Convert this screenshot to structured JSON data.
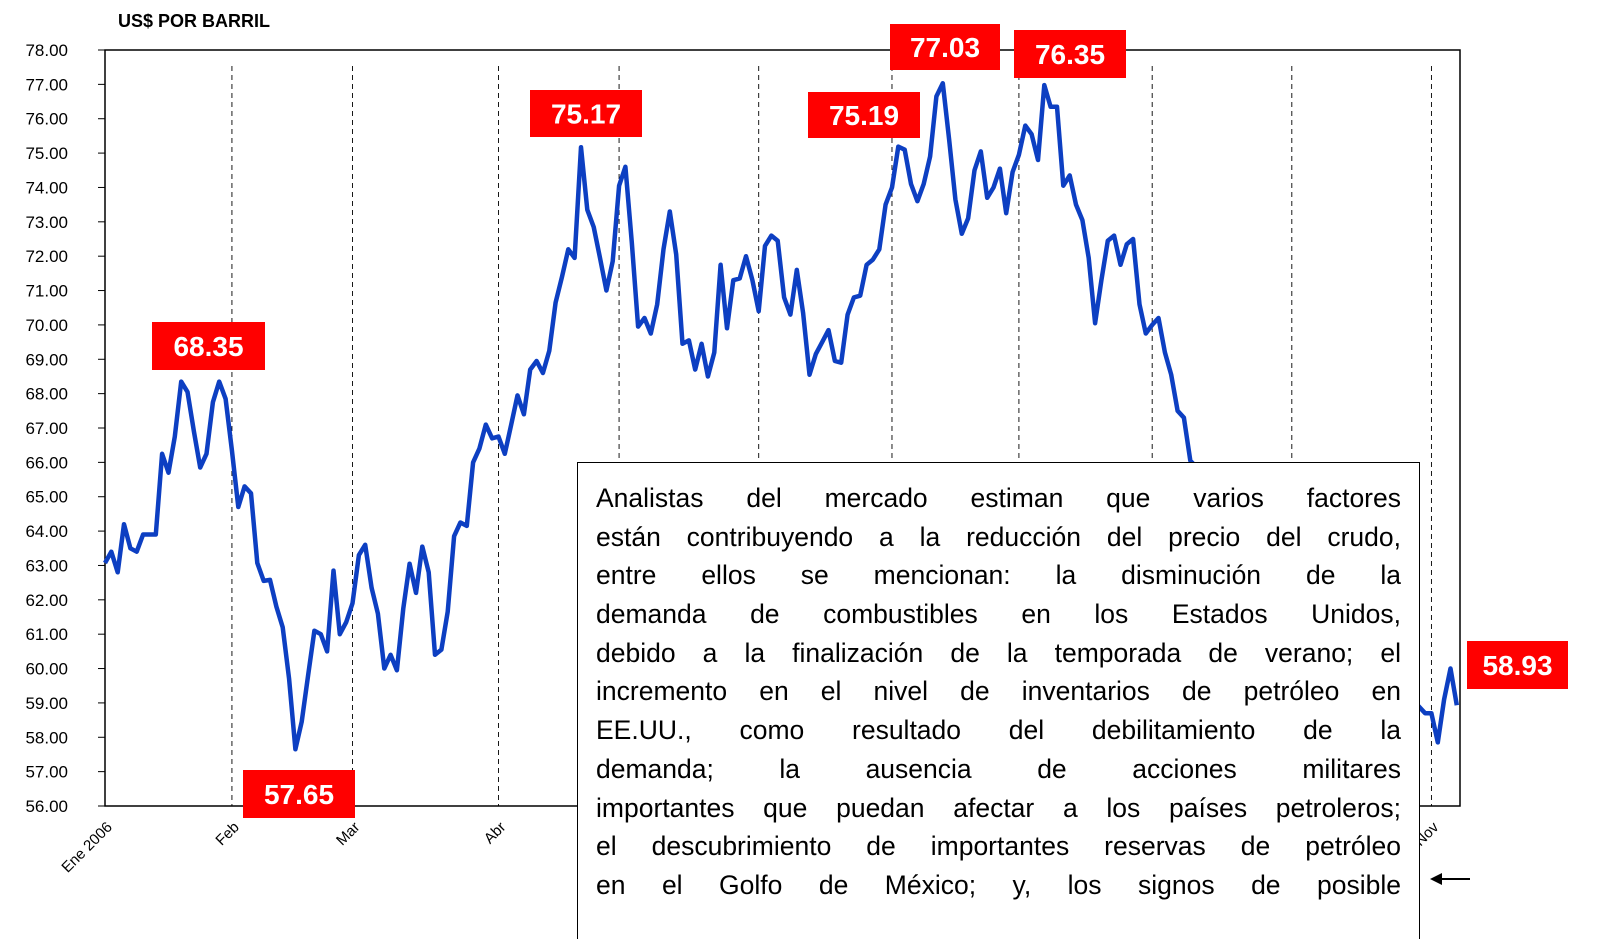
{
  "chart_data": {
    "type": "line",
    "y_axis_label": "US$ POR BARRIL",
    "color": "#0d3fc2",
    "grid": true,
    "xlim": [
      0,
      213.5
    ],
    "ylim": [
      56,
      78
    ],
    "xticks": [
      {
        "value": 0,
        "label": "Ene 2006"
      },
      {
        "value": 20,
        "label": "Feb"
      },
      {
        "value": 39,
        "label": "Mar"
      },
      {
        "value": 62,
        "label": "Abr"
      },
      {
        "value": 81,
        "label": null
      },
      {
        "value": 103,
        "label": null
      },
      {
        "value": 124,
        "label": null
      },
      {
        "value": 144,
        "label": null
      },
      {
        "value": 165,
        "label": null
      },
      {
        "value": 187,
        "label": null
      },
      {
        "value": 209,
        "label": "Nov"
      }
    ],
    "yticks": [
      {
        "value": 56,
        "label": "56.00"
      },
      {
        "value": 57,
        "label": "57.00"
      },
      {
        "value": 58,
        "label": "58.00"
      },
      {
        "value": 59,
        "label": "59.00"
      },
      {
        "value": 60,
        "label": "60.00"
      },
      {
        "value": 61,
        "label": "61.00"
      },
      {
        "value": 62,
        "label": "62.00"
      },
      {
        "value": 63,
        "label": "63.00"
      },
      {
        "value": 64,
        "label": "64.00"
      },
      {
        "value": 65,
        "label": "65.00"
      },
      {
        "value": 66,
        "label": "66.00"
      },
      {
        "value": 67,
        "label": "67.00"
      },
      {
        "value": 68,
        "label": "68.00"
      },
      {
        "value": 69,
        "label": "69.00"
      },
      {
        "value": 70,
        "label": "70.00"
      },
      {
        "value": 71,
        "label": "71.00"
      },
      {
        "value": 72,
        "label": "72.00"
      },
      {
        "value": 73,
        "label": "73.00"
      },
      {
        "value": 74,
        "label": "74.00"
      },
      {
        "value": 75,
        "label": "75.00"
      },
      {
        "value": 76,
        "label": "76.00"
      },
      {
        "value": 77,
        "label": "77.00"
      },
      {
        "value": 78,
        "label": "78.00"
      }
    ],
    "x": [
      0,
      1,
      2,
      3,
      4,
      5,
      6,
      7,
      8,
      9,
      10,
      11,
      12,
      13,
      14,
      15,
      16,
      17,
      18,
      19,
      20,
      21,
      22,
      23,
      24,
      25,
      26,
      27,
      28,
      29,
      30,
      31,
      32,
      33,
      34,
      35,
      36,
      37,
      38,
      39,
      40,
      41,
      42,
      43,
      44,
      45,
      46,
      47,
      48,
      49,
      50,
      51,
      52,
      53,
      54,
      55,
      56,
      57,
      58,
      59,
      60,
      61,
      62,
      63,
      64,
      65,
      66,
      67,
      68,
      69,
      70,
      71,
      72,
      73,
      74,
      75,
      76,
      77,
      78,
      79,
      80,
      81,
      82,
      83,
      84,
      85,
      86,
      87,
      88,
      89,
      90,
      91,
      92,
      93,
      94,
      95,
      96,
      97,
      98,
      99,
      100,
      101,
      102,
      103,
      104,
      105,
      106,
      107,
      108,
      109,
      110,
      111,
      112,
      113,
      114,
      115,
      116,
      117,
      118,
      119,
      120,
      121,
      122,
      123,
      124,
      125,
      126,
      127,
      128,
      129,
      130,
      131,
      132,
      133,
      134,
      135,
      136,
      137,
      138,
      139,
      140,
      141,
      142,
      143,
      144,
      145,
      146,
      147,
      148,
      149,
      150,
      151,
      152,
      153,
      154,
      155,
      156,
      157,
      158,
      159,
      160,
      161,
      162,
      163,
      164,
      165,
      166,
      167,
      168,
      169,
      170,
      171,
      208,
      209,
      210,
      211,
      212,
      213
    ],
    "values": [
      63.07,
      63.4,
      62.8,
      64.2,
      63.5,
      63.4,
      63.9,
      63.9,
      63.9,
      66.25,
      65.7,
      66.75,
      68.35,
      68.05,
      66.9,
      65.85,
      66.25,
      67.75,
      68.35,
      67.85,
      66.35,
      64.7,
      65.3,
      65.1,
      63.07,
      62.55,
      62.58,
      61.8,
      61.2,
      59.7,
      57.65,
      58.45,
      59.8,
      61.1,
      61.0,
      60.5,
      62.85,
      61.0,
      61.35,
      61.9,
      63.3,
      63.6,
      62.35,
      61.6,
      60.0,
      60.4,
      59.95,
      61.75,
      63.05,
      62.2,
      63.55,
      62.8,
      60.4,
      60.55,
      61.65,
      63.85,
      64.25,
      64.15,
      66.0,
      66.4,
      67.1,
      66.7,
      66.75,
      66.25,
      67.1,
      67.95,
      67.4,
      68.7,
      68.95,
      68.6,
      69.25,
      70.65,
      71.4,
      72.2,
      71.95,
      75.17,
      73.35,
      72.85,
      71.95,
      71.0,
      71.85,
      74.05,
      74.6,
      72.4,
      69.95,
      70.2,
      69.75,
      70.6,
      72.2,
      73.3,
      72.05,
      69.45,
      69.55,
      68.7,
      69.45,
      68.5,
      69.2,
      71.75,
      69.9,
      71.3,
      71.35,
      72.0,
      71.3,
      70.4,
      72.3,
      72.6,
      72.45,
      70.8,
      70.3,
      71.6,
      70.35,
      68.55,
      69.15,
      69.5,
      69.85,
      68.95,
      68.9,
      70.3,
      70.8,
      70.85,
      71.75,
      71.9,
      72.2,
      73.5,
      74.0,
      75.19,
      75.1,
      74.1,
      73.6,
      74.1,
      74.9,
      76.65,
      77.03,
      75.4,
      73.65,
      72.65,
      73.1,
      74.5,
      75.05,
      73.7,
      74.0,
      74.55,
      73.25,
      74.45,
      74.95,
      75.8,
      75.55,
      74.8,
      76.98,
      76.35,
      76.35,
      74.05,
      74.35,
      73.5,
      73.05,
      71.95,
      70.05,
      71.3,
      72.45,
      72.6,
      71.75,
      72.35,
      72.5,
      70.6,
      69.75,
      70.0,
      70.2,
      69.2,
      68.55,
      67.5,
      67.3,
      66.05,
      58.7,
      58.7,
      57.85,
      59.1,
      60.0,
      58.93
    ],
    "annotations": [
      "68.35",
      "57.65",
      "75.17",
      "75.19",
      "77.03",
      "76.35",
      "58.93"
    ],
    "note_lines": [
      "Analistas del mercado estiman que varios factores",
      "están contribuyendo a la reducción del precio del crudo,",
      "entre ellos se mencionan: la disminución de la",
      "demanda de combustibles en los Estados Unidos,",
      "debido a la finalización de la temporada de verano; el",
      "incremento en el nivel de inventarios de petróleo en",
      "EE.UU., como resultado del debilitamiento de la",
      "demanda; la ausencia de acciones militares",
      "importantes que puedan afectar a los países petroleros;",
      "el descubrimiento de importantes reservas de petróleo",
      "en el Golfo de México; y,  los signos de posible"
    ]
  }
}
